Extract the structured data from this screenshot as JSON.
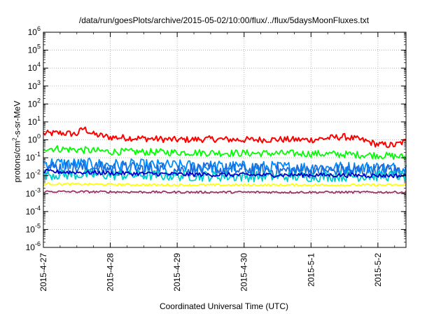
{
  "chart_data": {
    "type": "line",
    "title": "/data/run/goesPlots/archive/2015-05-02/10:00/flux/../flux/5daysMoonFluxes.txt",
    "xlabel": "Coordinated Universal Time (UTC)",
    "ylabel_main": "protons/cm",
    "ylabel_sup": "2",
    "ylabel_rest": "-s-sr-MeV",
    "x_ticks": [
      "2015-4-27",
      "2015-4-28",
      "2015-4-29",
      "2015-4-30",
      "2015-5-1",
      "2015-5-2"
    ],
    "xlim": [
      "2015-4-27 00:00",
      "2015-5-2 10:00"
    ],
    "y_scale": "log",
    "ylim": [
      1e-06,
      1000000.0
    ],
    "y_ticks": [
      {
        "base": "10",
        "exp": "-6"
      },
      {
        "base": "10",
        "exp": "-5"
      },
      {
        "base": "10",
        "exp": "-4"
      },
      {
        "base": "10",
        "exp": "-3"
      },
      {
        "base": "10",
        "exp": "-2"
      },
      {
        "base": "10",
        "exp": "-1"
      },
      {
        "base": "10",
        "exp": "0"
      },
      {
        "base": "10",
        "exp": "1"
      },
      {
        "base": "10",
        "exp": "2"
      },
      {
        "base": "10",
        "exp": "3"
      },
      {
        "base": "10",
        "exp": "4"
      },
      {
        "base": "10",
        "exp": "5"
      },
      {
        "base": "10",
        "exp": "6"
      }
    ],
    "grid": true,
    "series": [
      {
        "color": "#ff0000",
        "x": [
          0,
          0.25,
          0.5,
          0.6,
          0.75,
          1.0,
          1.5,
          2.0,
          2.5,
          3.0,
          3.5,
          4.0,
          4.3,
          4.5,
          4.8,
          5.0,
          5.25,
          5.42
        ],
        "y": [
          2.2,
          2.4,
          2.1,
          4.5,
          2.0,
          1.4,
          1.2,
          1.0,
          1.1,
          1.0,
          1.05,
          1.0,
          1.3,
          1.5,
          0.9,
          0.55,
          0.5,
          0.85
        ],
        "noise": 0.18
      },
      {
        "color": "#00ff00",
        "x": [
          0,
          0.5,
          1.0,
          2.0,
          3.0,
          4.0,
          5.0,
          5.42
        ],
        "y": [
          0.35,
          0.28,
          0.22,
          0.2,
          0.18,
          0.17,
          0.14,
          0.11
        ],
        "noise": 0.2
      },
      {
        "color": "#0088ff",
        "x": [
          0,
          1.0,
          2.0,
          3.0,
          4.0,
          5.0,
          5.42
        ],
        "y": [
          0.05,
          0.04,
          0.035,
          0.03,
          0.028,
          0.028,
          0.025
        ],
        "noise": 0.35
      },
      {
        "color": "#1e6bd6",
        "x": [
          0,
          1.0,
          2.0,
          3.0,
          4.0,
          5.42
        ],
        "y": [
          0.03,
          0.025,
          0.022,
          0.02,
          0.018,
          0.02
        ],
        "noise": 0.4
      },
      {
        "color": "#00cccc",
        "x": [
          0,
          1.0,
          2.0,
          3.0,
          4.0,
          5.42
        ],
        "y": [
          0.012,
          0.011,
          0.01,
          0.009,
          0.009,
          0.01
        ],
        "noise": 0.3
      },
      {
        "color": "#0000cc",
        "x": [
          0,
          1.0,
          2.0,
          3.0,
          4.0,
          5.42
        ],
        "y": [
          0.017,
          0.014,
          0.012,
          0.011,
          0.011,
          0.01
        ],
        "noise": 0.12
      },
      {
        "color": "#ffff00",
        "x": [
          0,
          2.0,
          4.0,
          5.42
        ],
        "y": [
          0.0035,
          0.003,
          0.003,
          0.003
        ],
        "noise": 0.06
      },
      {
        "color": "#993366",
        "x": [
          0,
          2.0,
          4.0,
          5.42
        ],
        "y": [
          0.0013,
          0.0012,
          0.0012,
          0.0012
        ],
        "noise": 0.06
      }
    ]
  }
}
